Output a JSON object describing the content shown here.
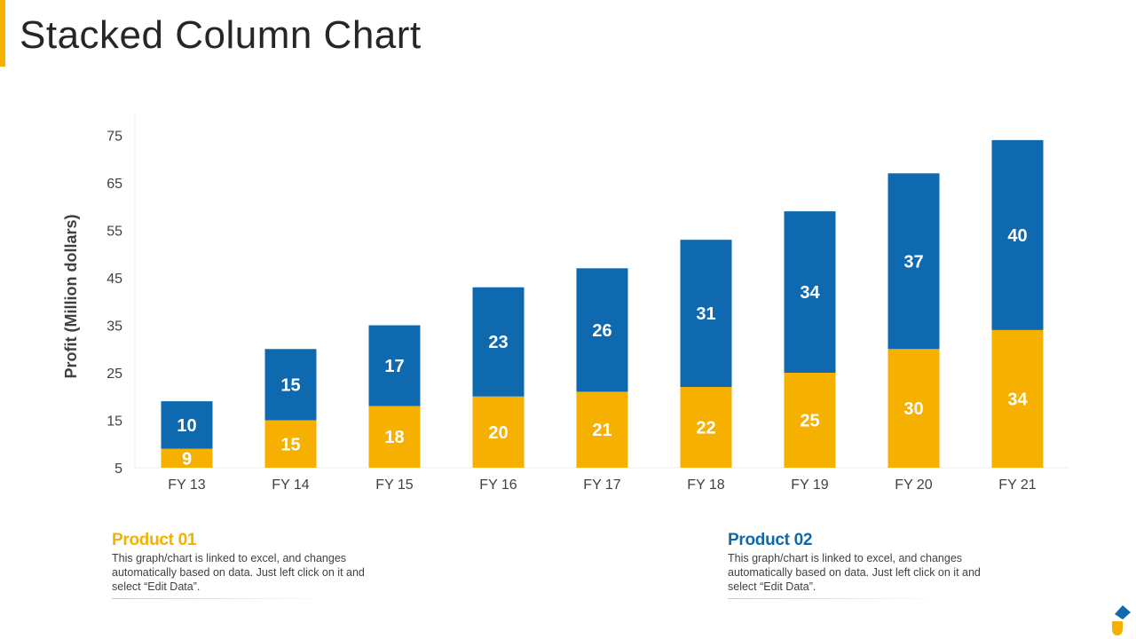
{
  "slide": {
    "title": "Stacked Column Chart",
    "accent_color": "#F5B000"
  },
  "chart_data": {
    "type": "bar",
    "stacked": true,
    "title": "",
    "xlabel": "",
    "ylabel": "Profit  (Million dollars)",
    "categories": [
      "FY 13",
      "FY 14",
      "FY 15",
      "FY 16",
      "FY 17",
      "FY 18",
      "FY 19",
      "FY 20",
      "FY 21"
    ],
    "yticks": [
      5,
      15,
      25,
      35,
      45,
      55,
      65,
      75
    ],
    "ylim": [
      5,
      80
    ],
    "grid": false,
    "series": [
      {
        "values": [
          9,
          15,
          18,
          20,
          21,
          22,
          25,
          30,
          34
        ],
        "color": "#F5B000"
      },
      {
        "values": [
          10,
          15,
          17,
          23,
          26,
          31,
          34,
          37,
          40
        ],
        "color": "#0E69AE"
      }
    ]
  },
  "legend": [
    {
      "title": "Product 01",
      "color": "#F5B000",
      "description": "This graph/chart is linked to excel, and changes automatically based on data. Just left click on it and select “Edit Data”."
    },
    {
      "title": "Product 02",
      "color": "#0E69AE",
      "description": "This graph/chart is linked to excel, and changes automatically based on data. Just left click on it and select “Edit Data”."
    }
  ],
  "logo": {
    "icon": "brand-logo-icon",
    "top_color": "#0E69AE",
    "bottom_color": "#F5B000"
  }
}
